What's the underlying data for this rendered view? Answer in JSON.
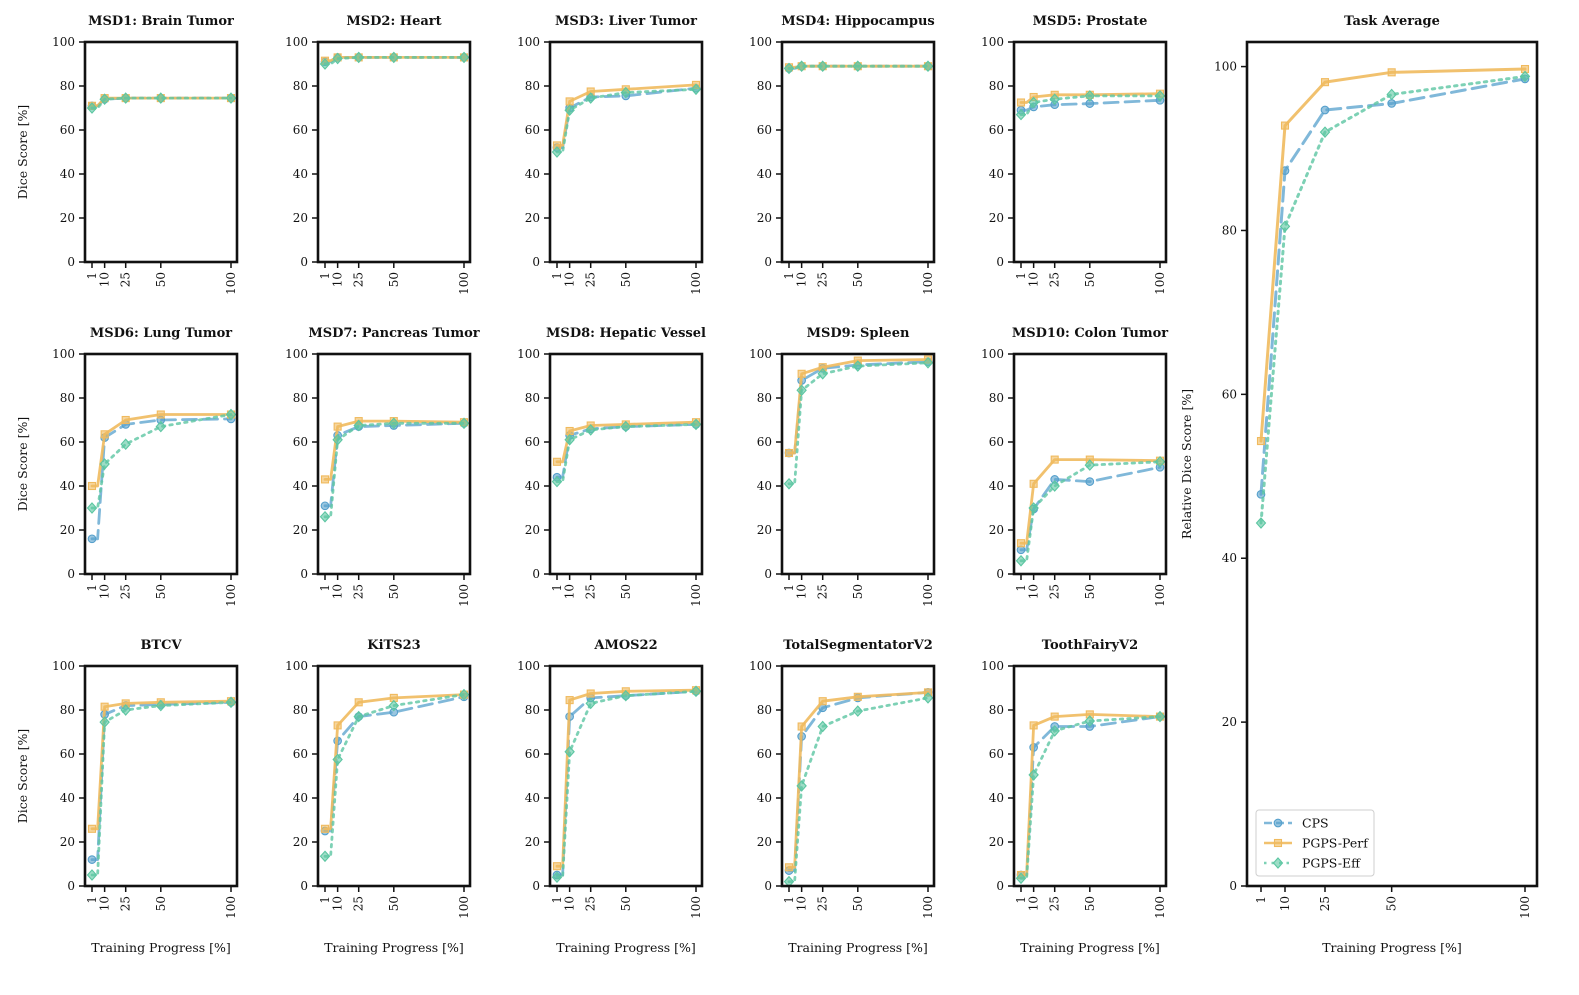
{
  "figure": {
    "x_axis_label": "Training Progress [%]",
    "y_axis_label": "Dice Score [%]",
    "y_axis_label_avg": "Relative Dice Score [%]",
    "x_ticks": [
      1,
      10,
      25,
      50,
      100
    ]
  },
  "chart_data": [
    {
      "type": "line",
      "title": "MSD1: Brain Tumor",
      "x": [
        1,
        5,
        10,
        25,
        50,
        100
      ],
      "ylim": [
        0,
        100
      ],
      "yticks": [
        0,
        20,
        40,
        60,
        80,
        100
      ],
      "series": [
        {
          "name": "CPS",
          "values": [
            71,
            71,
            74,
            74.5,
            74.5,
            74.5
          ]
        },
        {
          "name": "PGPS-Perf",
          "values": [
            71,
            71,
            74.5,
            74.5,
            74.5,
            74.5
          ]
        },
        {
          "name": "PGPS-Eff",
          "values": [
            70,
            70,
            74,
            74.5,
            74.5,
            74.5
          ]
        }
      ]
    },
    {
      "type": "line",
      "title": "MSD2: Heart",
      "x": [
        1,
        5,
        10,
        25,
        50,
        100
      ],
      "ylim": [
        0,
        100
      ],
      "yticks": [
        0,
        20,
        40,
        60,
        80,
        100
      ],
      "series": [
        {
          "name": "CPS",
          "values": [
            91,
            91,
            93,
            93,
            93,
            93
          ]
        },
        {
          "name": "PGPS-Perf",
          "values": [
            91.5,
            91.5,
            93,
            93,
            93,
            93
          ]
        },
        {
          "name": "PGPS-Eff",
          "values": [
            90,
            90,
            92.5,
            93,
            93,
            93
          ]
        }
      ]
    },
    {
      "type": "line",
      "title": "MSD3: Liver Tumor",
      "x": [
        1,
        5,
        10,
        25,
        50,
        100
      ],
      "ylim": [
        0,
        100
      ],
      "yticks": [
        0,
        20,
        40,
        60,
        80,
        100
      ],
      "series": [
        {
          "name": "CPS",
          "values": [
            52,
            52,
            70,
            75,
            75.5,
            79
          ]
        },
        {
          "name": "PGPS-Perf",
          "values": [
            53,
            53,
            73,
            77.5,
            78.5,
            80.5
          ]
        },
        {
          "name": "PGPS-Eff",
          "values": [
            50,
            50,
            69,
            74.5,
            77,
            78.5
          ]
        }
      ]
    },
    {
      "type": "line",
      "title": "MSD4: Hippocampus",
      "x": [
        1,
        5,
        10,
        25,
        50,
        100
      ],
      "ylim": [
        0,
        100
      ],
      "yticks": [
        0,
        20,
        40,
        60,
        80,
        100
      ],
      "series": [
        {
          "name": "CPS",
          "values": [
            88,
            88,
            89,
            89,
            89,
            89
          ]
        },
        {
          "name": "PGPS-Perf",
          "values": [
            88.5,
            88.5,
            89,
            89,
            89,
            89
          ]
        },
        {
          "name": "PGPS-Eff",
          "values": [
            88,
            88,
            89,
            89,
            89,
            89
          ]
        }
      ]
    },
    {
      "type": "line",
      "title": "MSD5: Prostate",
      "x": [
        1,
        5,
        10,
        25,
        50,
        100
      ],
      "ylim": [
        0,
        100
      ],
      "yticks": [
        0,
        20,
        40,
        60,
        80,
        100
      ],
      "series": [
        {
          "name": "CPS",
          "values": [
            69,
            69,
            70.5,
            71.5,
            72,
            73.5
          ]
        },
        {
          "name": "PGPS-Perf",
          "values": [
            72.5,
            72.5,
            75,
            76,
            76,
            76.5
          ]
        },
        {
          "name": "PGPS-Eff",
          "values": [
            67,
            67,
            72.5,
            74,
            75.5,
            75.5
          ]
        }
      ]
    },
    {
      "type": "line",
      "title": "MSD6: Lung Tumor",
      "x": [
        1,
        5,
        10,
        25,
        50,
        100
      ],
      "ylim": [
        0,
        100
      ],
      "yticks": [
        0,
        20,
        40,
        60,
        80,
        100
      ],
      "series": [
        {
          "name": "CPS",
          "values": [
            16,
            16,
            62,
            68,
            70,
            70.5
          ]
        },
        {
          "name": "PGPS-Perf",
          "values": [
            40,
            40,
            63.5,
            70,
            72.5,
            72.5
          ]
        },
        {
          "name": "PGPS-Eff",
          "values": [
            30,
            30,
            50,
            59,
            67,
            72.5
          ]
        }
      ]
    },
    {
      "type": "line",
      "title": "MSD7: Pancreas Tumor",
      "x": [
        1,
        5,
        10,
        25,
        50,
        100
      ],
      "ylim": [
        0,
        100
      ],
      "yticks": [
        0,
        20,
        40,
        60,
        80,
        100
      ],
      "series": [
        {
          "name": "CPS",
          "values": [
            31,
            31,
            63,
            67,
            67.5,
            68.5
          ]
        },
        {
          "name": "PGPS-Perf",
          "values": [
            43,
            43,
            67,
            69.5,
            69.5,
            69
          ]
        },
        {
          "name": "PGPS-Eff",
          "values": [
            26,
            26,
            61,
            67.5,
            68.5,
            68.5
          ]
        }
      ]
    },
    {
      "type": "line",
      "title": "MSD8: Hepatic Vessel",
      "x": [
        1,
        5,
        10,
        25,
        50,
        100
      ],
      "ylim": [
        0,
        100
      ],
      "yticks": [
        0,
        20,
        40,
        60,
        80,
        100
      ],
      "series": [
        {
          "name": "CPS",
          "values": [
            44,
            44,
            63,
            66,
            67,
            68
          ]
        },
        {
          "name": "PGPS-Perf",
          "values": [
            51,
            51,
            65,
            67.5,
            68,
            69
          ]
        },
        {
          "name": "PGPS-Eff",
          "values": [
            42,
            42,
            61,
            65.5,
            67,
            68
          ]
        }
      ]
    },
    {
      "type": "line",
      "title": "MSD9: Spleen",
      "x": [
        1,
        5,
        10,
        25,
        50,
        100
      ],
      "ylim": [
        0,
        100
      ],
      "yticks": [
        0,
        20,
        40,
        60,
        80,
        100
      ],
      "series": [
        {
          "name": "CPS",
          "values": [
            55,
            55,
            88,
            93.5,
            95,
            96.5
          ]
        },
        {
          "name": "PGPS-Perf",
          "values": [
            55,
            55,
            91,
            94,
            97,
            97.5
          ]
        },
        {
          "name": "PGPS-Eff",
          "values": [
            41,
            41,
            83.5,
            91,
            94.5,
            96
          ]
        }
      ]
    },
    {
      "type": "line",
      "title": "MSD10: Colon Tumor",
      "x": [
        1,
        5,
        10,
        25,
        50,
        100
      ],
      "ylim": [
        0,
        100
      ],
      "yticks": [
        0,
        20,
        40,
        60,
        80,
        100
      ],
      "series": [
        {
          "name": "CPS",
          "values": [
            11,
            11,
            29.5,
            43,
            42,
            48.5
          ]
        },
        {
          "name": "PGPS-Perf",
          "values": [
            14,
            14,
            41,
            52,
            52,
            51.5
          ]
        },
        {
          "name": "PGPS-Eff",
          "values": [
            6,
            6,
            30,
            40,
            49.5,
            51
          ]
        }
      ]
    },
    {
      "type": "line",
      "title": "BTCV",
      "x": [
        1,
        5,
        10,
        25,
        50,
        100
      ],
      "ylim": [
        0,
        100
      ],
      "yticks": [
        0,
        20,
        40,
        60,
        80,
        100
      ],
      "series": [
        {
          "name": "CPS",
          "values": [
            12,
            12,
            78,
            82,
            82.5,
            83.5
          ]
        },
        {
          "name": "PGPS-Perf",
          "values": [
            26,
            26,
            81.5,
            83,
            83.5,
            84
          ]
        },
        {
          "name": "PGPS-Eff",
          "values": [
            5,
            5,
            74.5,
            80,
            82,
            83.5
          ]
        }
      ]
    },
    {
      "type": "line",
      "title": "KiTS23",
      "x": [
        1,
        5,
        10,
        25,
        50,
        100
      ],
      "ylim": [
        0,
        100
      ],
      "yticks": [
        0,
        20,
        40,
        60,
        80,
        100
      ],
      "series": [
        {
          "name": "CPS",
          "values": [
            25,
            25,
            66,
            77,
            79,
            86
          ]
        },
        {
          "name": "PGPS-Perf",
          "values": [
            26,
            26,
            73,
            83.5,
            85.5,
            87
          ]
        },
        {
          "name": "PGPS-Eff",
          "values": [
            13.5,
            13.5,
            57.5,
            77,
            82,
            87
          ]
        }
      ]
    },
    {
      "type": "line",
      "title": "AMOS22",
      "x": [
        1,
        5,
        10,
        25,
        50,
        100
      ],
      "ylim": [
        0,
        100
      ],
      "yticks": [
        0,
        20,
        40,
        60,
        80,
        100
      ],
      "series": [
        {
          "name": "CPS",
          "values": [
            5,
            5,
            77,
            85.5,
            86.5,
            88.5
          ]
        },
        {
          "name": "PGPS-Perf",
          "values": [
            9,
            9,
            84.5,
            87.5,
            88.5,
            89
          ]
        },
        {
          "name": "PGPS-Eff",
          "values": [
            4,
            4,
            61,
            83,
            86.5,
            88.5
          ]
        }
      ]
    },
    {
      "type": "line",
      "title": "TotalSegmentatorV2",
      "x": [
        1,
        5,
        10,
        25,
        50,
        100
      ],
      "ylim": [
        0,
        100
      ],
      "yticks": [
        0,
        20,
        40,
        60,
        80,
        100
      ],
      "series": [
        {
          "name": "CPS",
          "values": [
            7,
            7,
            68,
            81,
            85.5,
            88
          ]
        },
        {
          "name": "PGPS-Perf",
          "values": [
            8.5,
            8.5,
            72.5,
            84,
            86,
            88
          ]
        },
        {
          "name": "PGPS-Eff",
          "values": [
            2,
            2,
            45.5,
            72.5,
            79.5,
            85.5
          ]
        }
      ]
    },
    {
      "type": "line",
      "title": "ToothFairyV2",
      "x": [
        1,
        5,
        10,
        25,
        50,
        100
      ],
      "ylim": [
        0,
        100
      ],
      "yticks": [
        0,
        20,
        40,
        60,
        80,
        100
      ],
      "series": [
        {
          "name": "CPS",
          "values": [
            5,
            5,
            63,
            72.5,
            72.5,
            77
          ]
        },
        {
          "name": "PGPS-Perf",
          "values": [
            5,
            5,
            73,
            77,
            78,
            77
          ]
        },
        {
          "name": "PGPS-Eff",
          "values": [
            3.5,
            3.5,
            50.5,
            70.5,
            75,
            77
          ]
        }
      ]
    },
    {
      "type": "line",
      "title": "Task Average",
      "x": [
        1,
        10,
        25,
        50,
        100
      ],
      "ylim": [
        0,
        103
      ],
      "yticks": [
        0,
        20,
        40,
        60,
        80,
        100
      ],
      "series": [
        {
          "name": "CPS",
          "values": [
            47.8,
            87.3,
            94.7,
            95.5,
            98.5
          ]
        },
        {
          "name": "PGPS-Perf",
          "values": [
            54.3,
            92.8,
            98.1,
            99.3,
            99.7
          ]
        },
        {
          "name": "PGPS-Eff",
          "values": [
            44.3,
            80.5,
            92,
            96.6,
            98.8
          ]
        }
      ]
    }
  ],
  "series_styles": [
    {
      "name": "CPS",
      "color": "#56A0CC",
      "dash": "14 7",
      "marker": "circle",
      "stroke_opacity": 0.75
    },
    {
      "name": "PGPS-Perf",
      "color": "#F0BA5E",
      "dash": "",
      "marker": "square",
      "stroke_opacity": 0.9
    },
    {
      "name": "PGPS-Eff",
      "color": "#5CC6A2",
      "dash": "2.5 5",
      "marker": "diamond",
      "stroke_opacity": 0.8
    }
  ],
  "legend": {
    "placement": "bottom-left",
    "entries": [
      "CPS",
      "PGPS-Perf",
      "PGPS-Eff"
    ]
  }
}
